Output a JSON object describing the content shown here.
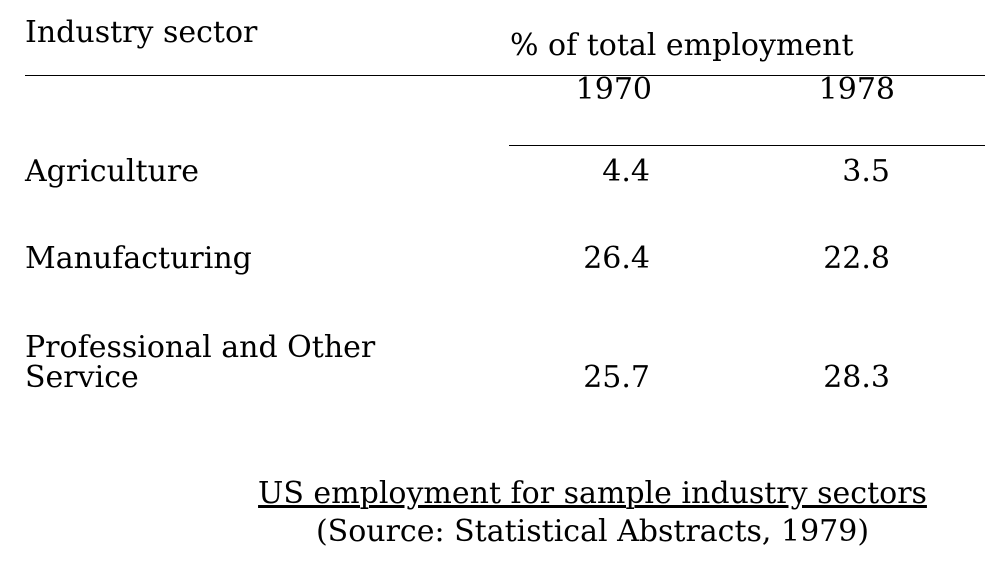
{
  "table": {
    "header": {
      "row_label": "Industry sector",
      "group": "% of total employment",
      "columns": [
        "1970",
        "1978"
      ]
    },
    "rows": [
      [
        "Agriculture",
        "4.4",
        "3.5"
      ],
      [
        "Manufacturing",
        "26.4",
        "22.8"
      ],
      [
        "Professional and Other Service",
        "25.7",
        "28.3"
      ]
    ]
  },
  "caption": {
    "title": "US employment for sample industry sectors",
    "source": "(Source: Statistical Abstracts, 1979)"
  }
}
